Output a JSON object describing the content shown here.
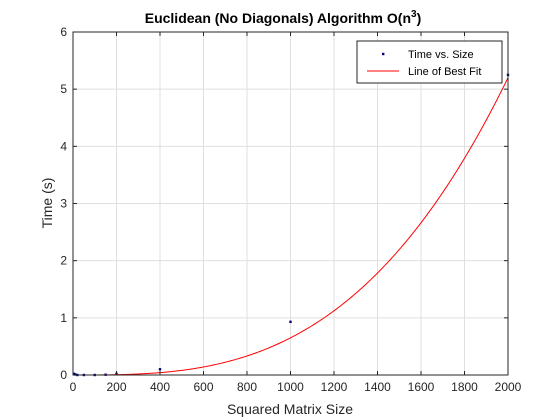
{
  "chart_data": {
    "type": "line",
    "title": "Euclidean (No Diagonals) Algorithm O(n",
    "title_superscript": "3",
    "title_suffix": ")",
    "xlabel": "Squared Matrix Size",
    "ylabel": "Time (s)",
    "xlim": [
      0,
      2000
    ],
    "ylim": [
      0,
      6
    ],
    "xticks": [
      0,
      200,
      400,
      600,
      800,
      1000,
      1200,
      1400,
      1600,
      1800,
      2000
    ],
    "yticks": [
      0,
      1,
      2,
      3,
      4,
      5,
      6
    ],
    "grid": true,
    "legend_position": "top-right",
    "series": [
      {
        "name": "Time vs. Size",
        "kind": "scatter",
        "color": "#00007f",
        "x": [
          5,
          10,
          20,
          50,
          100,
          150,
          200,
          400,
          1000,
          2000
        ],
        "y": [
          0.02,
          0.01,
          0.0,
          0.0,
          0.0,
          0.005,
          0.02,
          0.1,
          0.93,
          5.25
        ]
      },
      {
        "name": "Line of Best Fit",
        "kind": "line",
        "color": "#ff0000",
        "fit": "cubic",
        "coefficients": {
          "a3": 6.5e-10,
          "a2": 0.0,
          "a1": 0.0,
          "a0": 0.0
        }
      }
    ]
  }
}
